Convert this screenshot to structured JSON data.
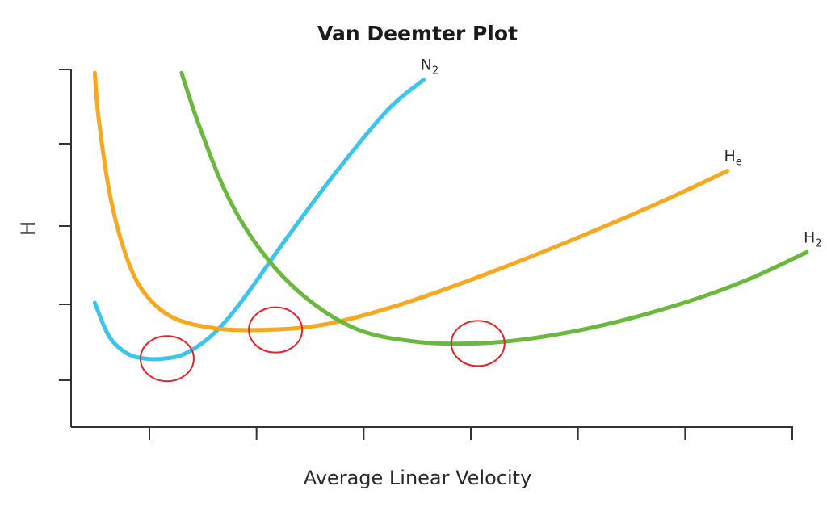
{
  "chart_data": {
    "type": "line",
    "title": "Van Deemter Plot",
    "xlabel": "Average Linear Velocity",
    "ylabel": "H",
    "xlim": [
      0,
      10
    ],
    "ylim": [
      0,
      10
    ],
    "x_ticks": 7,
    "y_ticks": 4,
    "grid": false,
    "series": [
      {
        "name": "N",
        "subscript": "2",
        "color": "#3cc4ea",
        "x": [
          0.15,
          0.35,
          0.6,
          0.85,
          1.1,
          1.4,
          1.8,
          2.2,
          2.8,
          3.5,
          4.2,
          4.7
        ],
        "y": [
          3.1,
          2.1,
          1.6,
          1.45,
          1.45,
          1.6,
          2.2,
          3.2,
          5.0,
          7.0,
          8.8,
          9.7
        ]
      },
      {
        "name": "H",
        "subscript": "e",
        "color": "#f7a823",
        "x": [
          0.15,
          0.2,
          0.35,
          0.55,
          0.8,
          1.2,
          1.8,
          2.5,
          3.3,
          4.3,
          5.5,
          6.8,
          8.0,
          8.9
        ],
        "y": [
          9.9,
          8.6,
          6.4,
          4.7,
          3.5,
          2.7,
          2.35,
          2.3,
          2.45,
          3.0,
          3.9,
          5.0,
          6.1,
          7.0
        ]
      },
      {
        "name": "H",
        "subscript": "2",
        "color": "#6bb83f",
        "x": [
          1.35,
          1.6,
          2.0,
          2.5,
          3.1,
          3.8,
          4.6,
          5.4,
          6.2,
          7.2,
          8.3,
          9.2,
          10.0
        ],
        "y": [
          9.9,
          8.3,
          6.2,
          4.5,
          3.2,
          2.3,
          1.95,
          1.9,
          2.05,
          2.45,
          3.1,
          3.8,
          4.6
        ]
      }
    ],
    "annotations": [
      {
        "type": "ellipse",
        "label": "N2 optimum",
        "x": 1.15,
        "y": 1.45,
        "color": "#e0242b"
      },
      {
        "type": "ellipse",
        "label": "He optimum",
        "x": 2.65,
        "y": 2.3,
        "color": "#e0242b"
      },
      {
        "type": "ellipse",
        "label": "H2 optimum",
        "x": 5.45,
        "y": 1.9,
        "color": "#e0242b"
      }
    ]
  }
}
